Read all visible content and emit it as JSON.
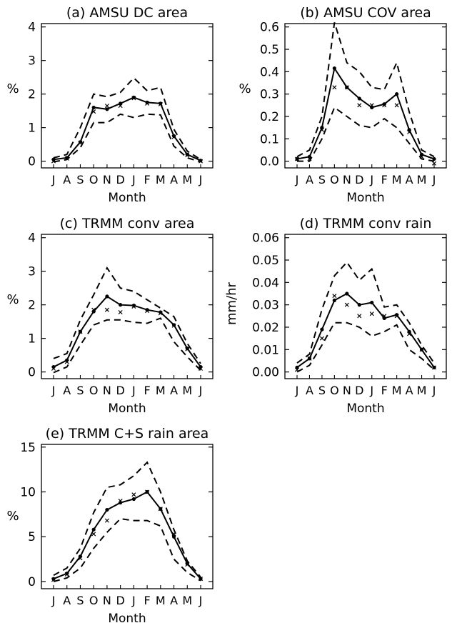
{
  "chart_data": [
    {
      "type": "line",
      "title": "(a) AMSU DC area",
      "xlabel": "Month",
      "ylabel": "%",
      "categories": [
        "J",
        "A",
        "S",
        "O",
        "N",
        "D",
        "J",
        "F",
        "M",
        "A",
        "M",
        "J"
      ],
      "ylim": [
        -0.2,
        4.1
      ],
      "yticks": [
        0,
        1,
        2,
        3,
        4
      ],
      "ytick_labels": [
        "0",
        "1",
        "2",
        "3",
        "4"
      ],
      "series": [
        {
          "style": "solid-dots",
          "values": [
            0.05,
            0.1,
            0.57,
            1.6,
            1.55,
            1.72,
            1.9,
            1.75,
            1.72,
            0.75,
            0.2,
            0.02
          ]
        },
        {
          "style": "dashed",
          "values": [
            0.1,
            0.2,
            1.0,
            2.0,
            1.92,
            2.05,
            2.48,
            2.1,
            2.2,
            0.95,
            0.3,
            0.05
          ]
        },
        {
          "style": "dashed",
          "values": [
            -0.02,
            0.05,
            0.4,
            1.15,
            1.15,
            1.4,
            1.3,
            1.4,
            1.38,
            0.45,
            0.1,
            -0.02
          ]
        },
        {
          "style": "x-markers",
          "values": [
            0.0,
            0.08,
            0.55,
            1.48,
            1.65,
            1.65,
            1.88,
            1.72,
            1.7,
            0.72,
            0.18,
            0.0
          ]
        }
      ]
    },
    {
      "type": "line",
      "title": "(b) AMSU COV area",
      "xlabel": "Month",
      "ylabel": "%",
      "categories": [
        "J",
        "A",
        "S",
        "O",
        "N",
        "D",
        "J",
        "F",
        "M",
        "A",
        "M",
        "J"
      ],
      "ylim": [
        -0.03,
        0.615
      ],
      "yticks": [
        0,
        0.1,
        0.2,
        0.3,
        0.4,
        0.5,
        0.6
      ],
      "ytick_labels": [
        "0.0",
        "0.1",
        "0.2",
        "0.3",
        "0.4",
        "0.5",
        "0.6"
      ],
      "series": [
        {
          "style": "solid-dots",
          "values": [
            0.01,
            0.02,
            0.15,
            0.415,
            0.33,
            0.28,
            0.24,
            0.255,
            0.3,
            0.14,
            0.03,
            0.01
          ]
        },
        {
          "style": "dashed",
          "values": [
            0.02,
            0.05,
            0.2,
            0.62,
            0.44,
            0.4,
            0.33,
            0.32,
            0.44,
            0.22,
            0.05,
            0.02
          ]
        },
        {
          "style": "dashed",
          "values": [
            0.0,
            0.0,
            0.1,
            0.24,
            0.2,
            0.16,
            0.15,
            0.19,
            0.15,
            0.08,
            0.01,
            0.0
          ]
        },
        {
          "style": "x-markers",
          "values": [
            0.01,
            0.01,
            0.14,
            0.33,
            0.33,
            0.25,
            0.25,
            0.25,
            0.25,
            0.13,
            0.02,
            -0.01
          ]
        }
      ]
    },
    {
      "type": "line",
      "title": "(c) TRMM conv area",
      "xlabel": "Month",
      "ylabel": "%",
      "categories": [
        "J",
        "A",
        "S",
        "O",
        "N",
        "D",
        "J",
        "F",
        "M",
        "A",
        "M",
        "J"
      ],
      "ylim": [
        -0.2,
        4.1
      ],
      "yticks": [
        0,
        1,
        2,
        3,
        4
      ],
      "ytick_labels": [
        "0",
        "1",
        "2",
        "3",
        "4"
      ],
      "series": [
        {
          "style": "solid-dots",
          "values": [
            0.15,
            0.35,
            1.2,
            1.8,
            2.25,
            2.0,
            1.98,
            1.85,
            1.78,
            1.4,
            0.7,
            0.15
          ]
        },
        {
          "style": "dashed",
          "values": [
            0.4,
            0.55,
            1.55,
            2.3,
            3.1,
            2.5,
            2.4,
            2.15,
            1.9,
            1.65,
            0.85,
            0.25
          ]
        },
        {
          "style": "dashed",
          "values": [
            -0.02,
            0.15,
            0.8,
            1.4,
            1.55,
            1.55,
            1.48,
            1.45,
            1.6,
            0.9,
            0.45,
            0.05
          ]
        },
        {
          "style": "x-markers",
          "values": [
            0.1,
            0.3,
            1.2,
            1.85,
            1.85,
            1.78,
            1.95,
            1.82,
            1.75,
            1.38,
            0.68,
            0.1
          ]
        }
      ]
    },
    {
      "type": "line",
      "title": "(d) TRMM conv rain",
      "xlabel": "Month",
      "ylabel": "mm/hr",
      "categories": [
        "J",
        "A",
        "S",
        "O",
        "N",
        "D",
        "J",
        "F",
        "M",
        "A",
        "M",
        "J"
      ],
      "ylim": [
        -0.003,
        0.0615
      ],
      "yticks": [
        0,
        0.01,
        0.02,
        0.03,
        0.04,
        0.05,
        0.06
      ],
      "ytick_labels": [
        "0.00",
        "0.01",
        "0.02",
        "0.03",
        "0.04",
        "0.05",
        "0.06"
      ],
      "series": [
        {
          "style": "solid-dots",
          "values": [
            0.002,
            0.006,
            0.019,
            0.032,
            0.035,
            0.03,
            0.031,
            0.024,
            0.0255,
            0.018,
            0.01,
            0.002
          ]
        },
        {
          "style": "dashed",
          "values": [
            0.004,
            0.008,
            0.028,
            0.043,
            0.049,
            0.041,
            0.046,
            0.029,
            0.03,
            0.022,
            0.012,
            0.004
          ]
        },
        {
          "style": "dashed",
          "values": [
            0.0,
            0.003,
            0.012,
            0.022,
            0.022,
            0.02,
            0.016,
            0.018,
            0.021,
            0.01,
            0.006,
            0.001
          ]
        },
        {
          "style": "x-markers",
          "values": [
            0.001,
            0.006,
            0.015,
            0.034,
            0.03,
            0.025,
            0.026,
            0.025,
            0.025,
            0.017,
            0.01,
            0.002
          ]
        }
      ]
    },
    {
      "type": "line",
      "title": "(e) TRMM C+S rain area",
      "xlabel": "Month",
      "ylabel": "%",
      "categories": [
        "J",
        "A",
        "S",
        "O",
        "N",
        "D",
        "J",
        "F",
        "M",
        "A",
        "M",
        "J"
      ],
      "ylim": [
        -0.8,
        15.3
      ],
      "yticks": [
        0,
        5,
        10,
        15
      ],
      "ytick_labels": [
        "0",
        "5",
        "10",
        "15"
      ],
      "series": [
        {
          "style": "solid-dots",
          "values": [
            0.3,
            0.9,
            2.8,
            5.8,
            8.0,
            8.8,
            9.2,
            10.0,
            8.1,
            5.0,
            2.0,
            0.3
          ]
        },
        {
          "style": "dashed",
          "values": [
            0.7,
            1.5,
            3.7,
            7.7,
            10.5,
            10.8,
            11.8,
            13.3,
            10.0,
            5.8,
            2.3,
            0.5
          ]
        },
        {
          "style": "dashed",
          "values": [
            0.0,
            0.4,
            1.5,
            3.7,
            5.5,
            7.0,
            6.8,
            6.8,
            6.2,
            2.5,
            1.0,
            0.1
          ]
        },
        {
          "style": "x-markers",
          "values": [
            0.2,
            0.8,
            2.6,
            5.3,
            6.8,
            9.0,
            9.7,
            10.0,
            8.1,
            5.3,
            1.9,
            0.3
          ]
        }
      ]
    }
  ]
}
